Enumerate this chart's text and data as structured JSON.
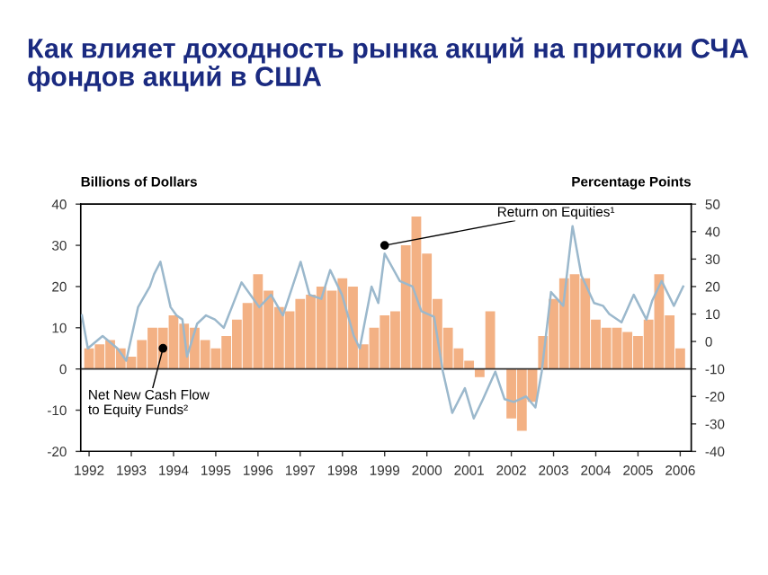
{
  "chart_data": {
    "type": "bar",
    "title": "Как влияет доходность рынка акций на притоки СЧА\nфондов акций в США",
    "ylabel": "Billions of Dollars",
    "y2label": "Percentage Points",
    "xlim": [
      1991.8,
      2006.26
    ],
    "xticks": [
      1992,
      1993,
      1994,
      1995,
      1996,
      1997,
      1998,
      1999,
      2000,
      2001,
      2002,
      2003,
      2004,
      2005,
      2006
    ],
    "ylim": [
      -20,
      40
    ],
    "yticks": [
      -20,
      -10,
      0,
      10,
      20,
      30,
      40
    ],
    "y2lim": [
      -40,
      50
    ],
    "y2ticks": [
      -40,
      -30,
      -20,
      -10,
      0,
      10,
      20,
      30,
      40,
      50
    ],
    "grid": false,
    "legend": false,
    "ref_lines": [
      {
        "axis": "y",
        "value": 0,
        "color": "#333333"
      }
    ],
    "annotations": [
      {
        "text": "Net New Cash Flow\nto Equity Funds²",
        "x": 1993.75,
        "y": 5
      },
      {
        "text": "Return on Equities¹",
        "x": 1999.0,
        "y": 30
      }
    ],
    "series": [
      {
        "color": "#f3b184",
        "x": [
          1992.0,
          1992.25,
          1992.5,
          1992.75,
          1993.0,
          1993.25,
          1993.5,
          1993.75,
          1994.0,
          1994.25,
          1994.5,
          1994.75,
          1995.0,
          1995.25,
          1995.5,
          1995.75,
          1996.0,
          1996.25,
          1996.5,
          1996.75,
          1997.0,
          1997.25,
          1997.5,
          1997.75,
          1998.0,
          1998.25,
          1998.5,
          1998.75,
          1999.0,
          1999.25,
          1999.5,
          1999.75,
          2000.0,
          2000.25,
          2000.5,
          2000.75,
          2001.0,
          2001.25,
          2001.5,
          2001.75,
          2002.0,
          2002.25,
          2002.5,
          2002.75,
          2003.0,
          2003.25,
          2003.5,
          2003.75,
          2004.0,
          2004.25,
          2004.5,
          2004.75,
          2005.0,
          2005.25,
          2005.5,
          2005.75,
          2006.0
        ],
        "values": [
          5,
          6,
          7,
          5,
          3,
          7,
          10,
          10,
          13,
          11,
          10,
          7,
          5,
          8,
          12,
          16,
          23,
          19,
          15,
          14,
          17,
          18,
          20,
          19,
          22,
          20,
          6,
          10,
          13,
          14,
          30,
          37,
          28,
          17,
          10,
          5,
          2,
          -2,
          14,
          0,
          -12,
          -15,
          -8,
          8,
          17,
          22,
          23,
          22,
          12,
          10,
          10,
          9,
          8,
          12,
          23,
          13,
          5
        ]
      },
      {
        "type": "line",
        "axis": "y2",
        "color": "#9bb8cc",
        "x": [
          1991.83,
          1991.97,
          1992.32,
          1992.67,
          1992.88,
          1993.16,
          1993.44,
          1993.54,
          1993.69,
          1993.93,
          1994.07,
          1994.21,
          1994.32,
          1994.56,
          1994.77,
          1994.98,
          1995.19,
          1995.61,
          1996.03,
          1996.31,
          1996.59,
          1997.01,
          1997.22,
          1997.5,
          1997.71,
          1997.99,
          1998.27,
          1998.41,
          1998.69,
          1998.85,
          1999.0,
          1999.36,
          1999.66,
          1999.87,
          2000.17,
          2000.38,
          2000.6,
          2000.9,
          2001.11,
          2001.33,
          2001.62,
          2001.84,
          2002.06,
          2002.35,
          2002.57,
          2002.72,
          2002.94,
          2003.23,
          2003.45,
          2003.66,
          2003.96,
          2004.17,
          2004.32,
          2004.61,
          2004.9,
          2005.2,
          2005.34,
          2005.56,
          2005.85,
          2006.07
        ],
        "values": [
          9.5,
          -2.5,
          2,
          -2.5,
          -7,
          12.5,
          20,
          24.5,
          29,
          12.5,
          9.5,
          8,
          -5.5,
          6.5,
          9.5,
          8,
          5,
          21.5,
          12.5,
          17,
          9.5,
          29,
          17,
          15.5,
          26,
          17,
          2,
          -2.5,
          20,
          14,
          32,
          22,
          20,
          11,
          9,
          -11,
          -26,
          -17,
          -28,
          -21,
          -11,
          -21,
          -22,
          -20,
          -24,
          -11,
          18,
          13,
          42,
          24,
          14,
          13,
          10,
          7,
          17,
          8,
          15,
          22,
          13,
          20
        ]
      }
    ]
  }
}
